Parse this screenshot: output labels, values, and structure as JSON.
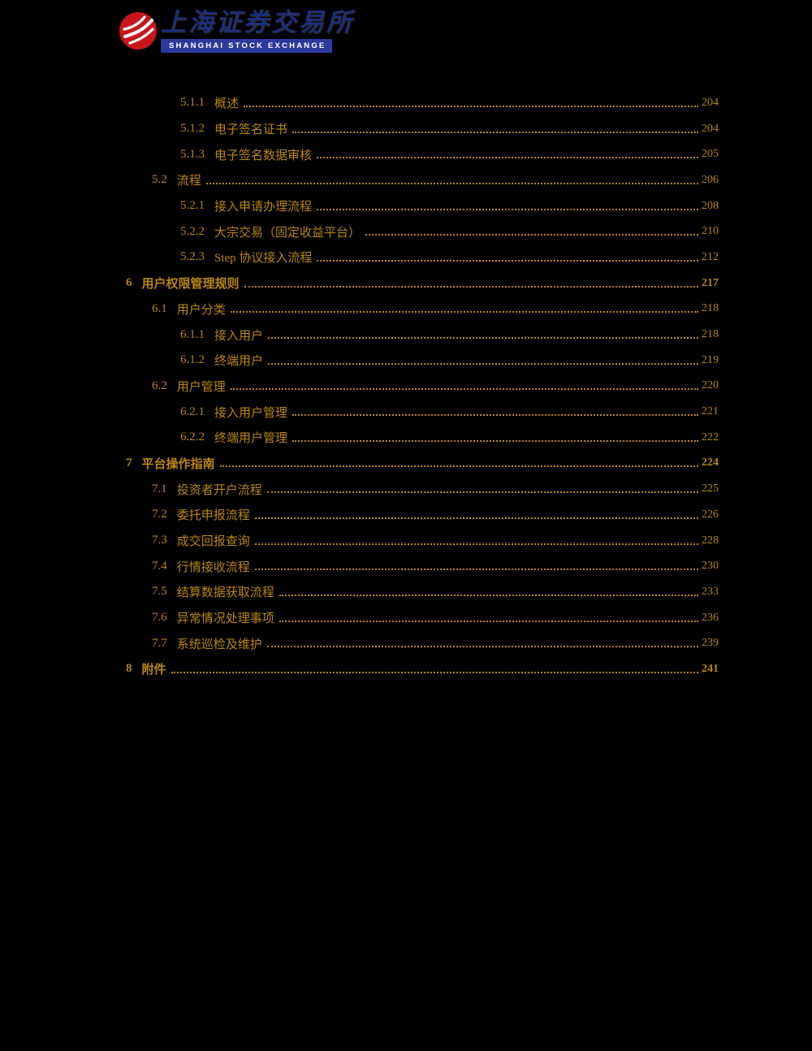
{
  "colors": {
    "toc_text": "#b8860b",
    "logo_calligraphy": "#1d2e7b",
    "logo_banner_bg": "#2b3a9c",
    "logo_banner_text": "#ffffff",
    "logo_circle": "#c8161d",
    "page_background": "#000000"
  },
  "header": {
    "logo_chinese": "上海证券交易所",
    "logo_english": "SHANGHAI STOCK EXCHANGE"
  },
  "toc": {
    "entries": [
      {
        "number": "5.1.1",
        "title": "概述",
        "page": "204",
        "level": 3
      },
      {
        "number": "5.1.2",
        "title": "电子签名证书",
        "page": "204",
        "level": 3
      },
      {
        "number": "5.1.3",
        "title": "电子签名数据审核",
        "page": "205",
        "level": 3
      },
      {
        "number": "5.2",
        "title": "流程",
        "page": "206",
        "level": 2
      },
      {
        "number": "5.2.1",
        "title": "接入申请办理流程",
        "page": "208",
        "level": 3
      },
      {
        "number": "5.2.2",
        "title": "大宗交易（固定收益平台）",
        "page": "210",
        "level": 3
      },
      {
        "number": "5.2.3",
        "title": "Step 协议接入流程",
        "page": "212",
        "level": 3
      },
      {
        "number": "6",
        "title": "用户权限管理规则",
        "page": "217",
        "level": 1
      },
      {
        "number": "6.1",
        "title": "用户分类",
        "page": "218",
        "level": 2
      },
      {
        "number": "6.1.1",
        "title": "接入用户",
        "page": "218",
        "level": 3
      },
      {
        "number": "6.1.2",
        "title": "终端用户",
        "page": "219",
        "level": 3
      },
      {
        "number": "6.2",
        "title": "用户管理",
        "page": "220",
        "level": 2
      },
      {
        "number": "6.2.1",
        "title": "接入用户管理",
        "page": "221",
        "level": 3
      },
      {
        "number": "6.2.2",
        "title": "终端用户管理",
        "page": "222",
        "level": 3
      },
      {
        "number": "7",
        "title": "平台操作指南",
        "page": "224",
        "level": 1
      },
      {
        "number": "7.1",
        "title": "投资者开户流程",
        "page": "225",
        "level": 2
      },
      {
        "number": "7.2",
        "title": "委托申报流程",
        "page": "226",
        "level": 2
      },
      {
        "number": "7.3",
        "title": "成交回报查询",
        "page": "228",
        "level": 2
      },
      {
        "number": "7.4",
        "title": "行情接收流程",
        "page": "230",
        "level": 2
      },
      {
        "number": "7.5",
        "title": "结算数据获取流程",
        "page": "233",
        "level": 2
      },
      {
        "number": "7.6",
        "title": "异常情况处理事项",
        "page": "236",
        "level": 2
      },
      {
        "number": "7.7",
        "title": "系统巡检及维护",
        "page": "239",
        "level": 2
      },
      {
        "number": "8",
        "title": "附件",
        "page": "241",
        "level": 1
      }
    ]
  }
}
